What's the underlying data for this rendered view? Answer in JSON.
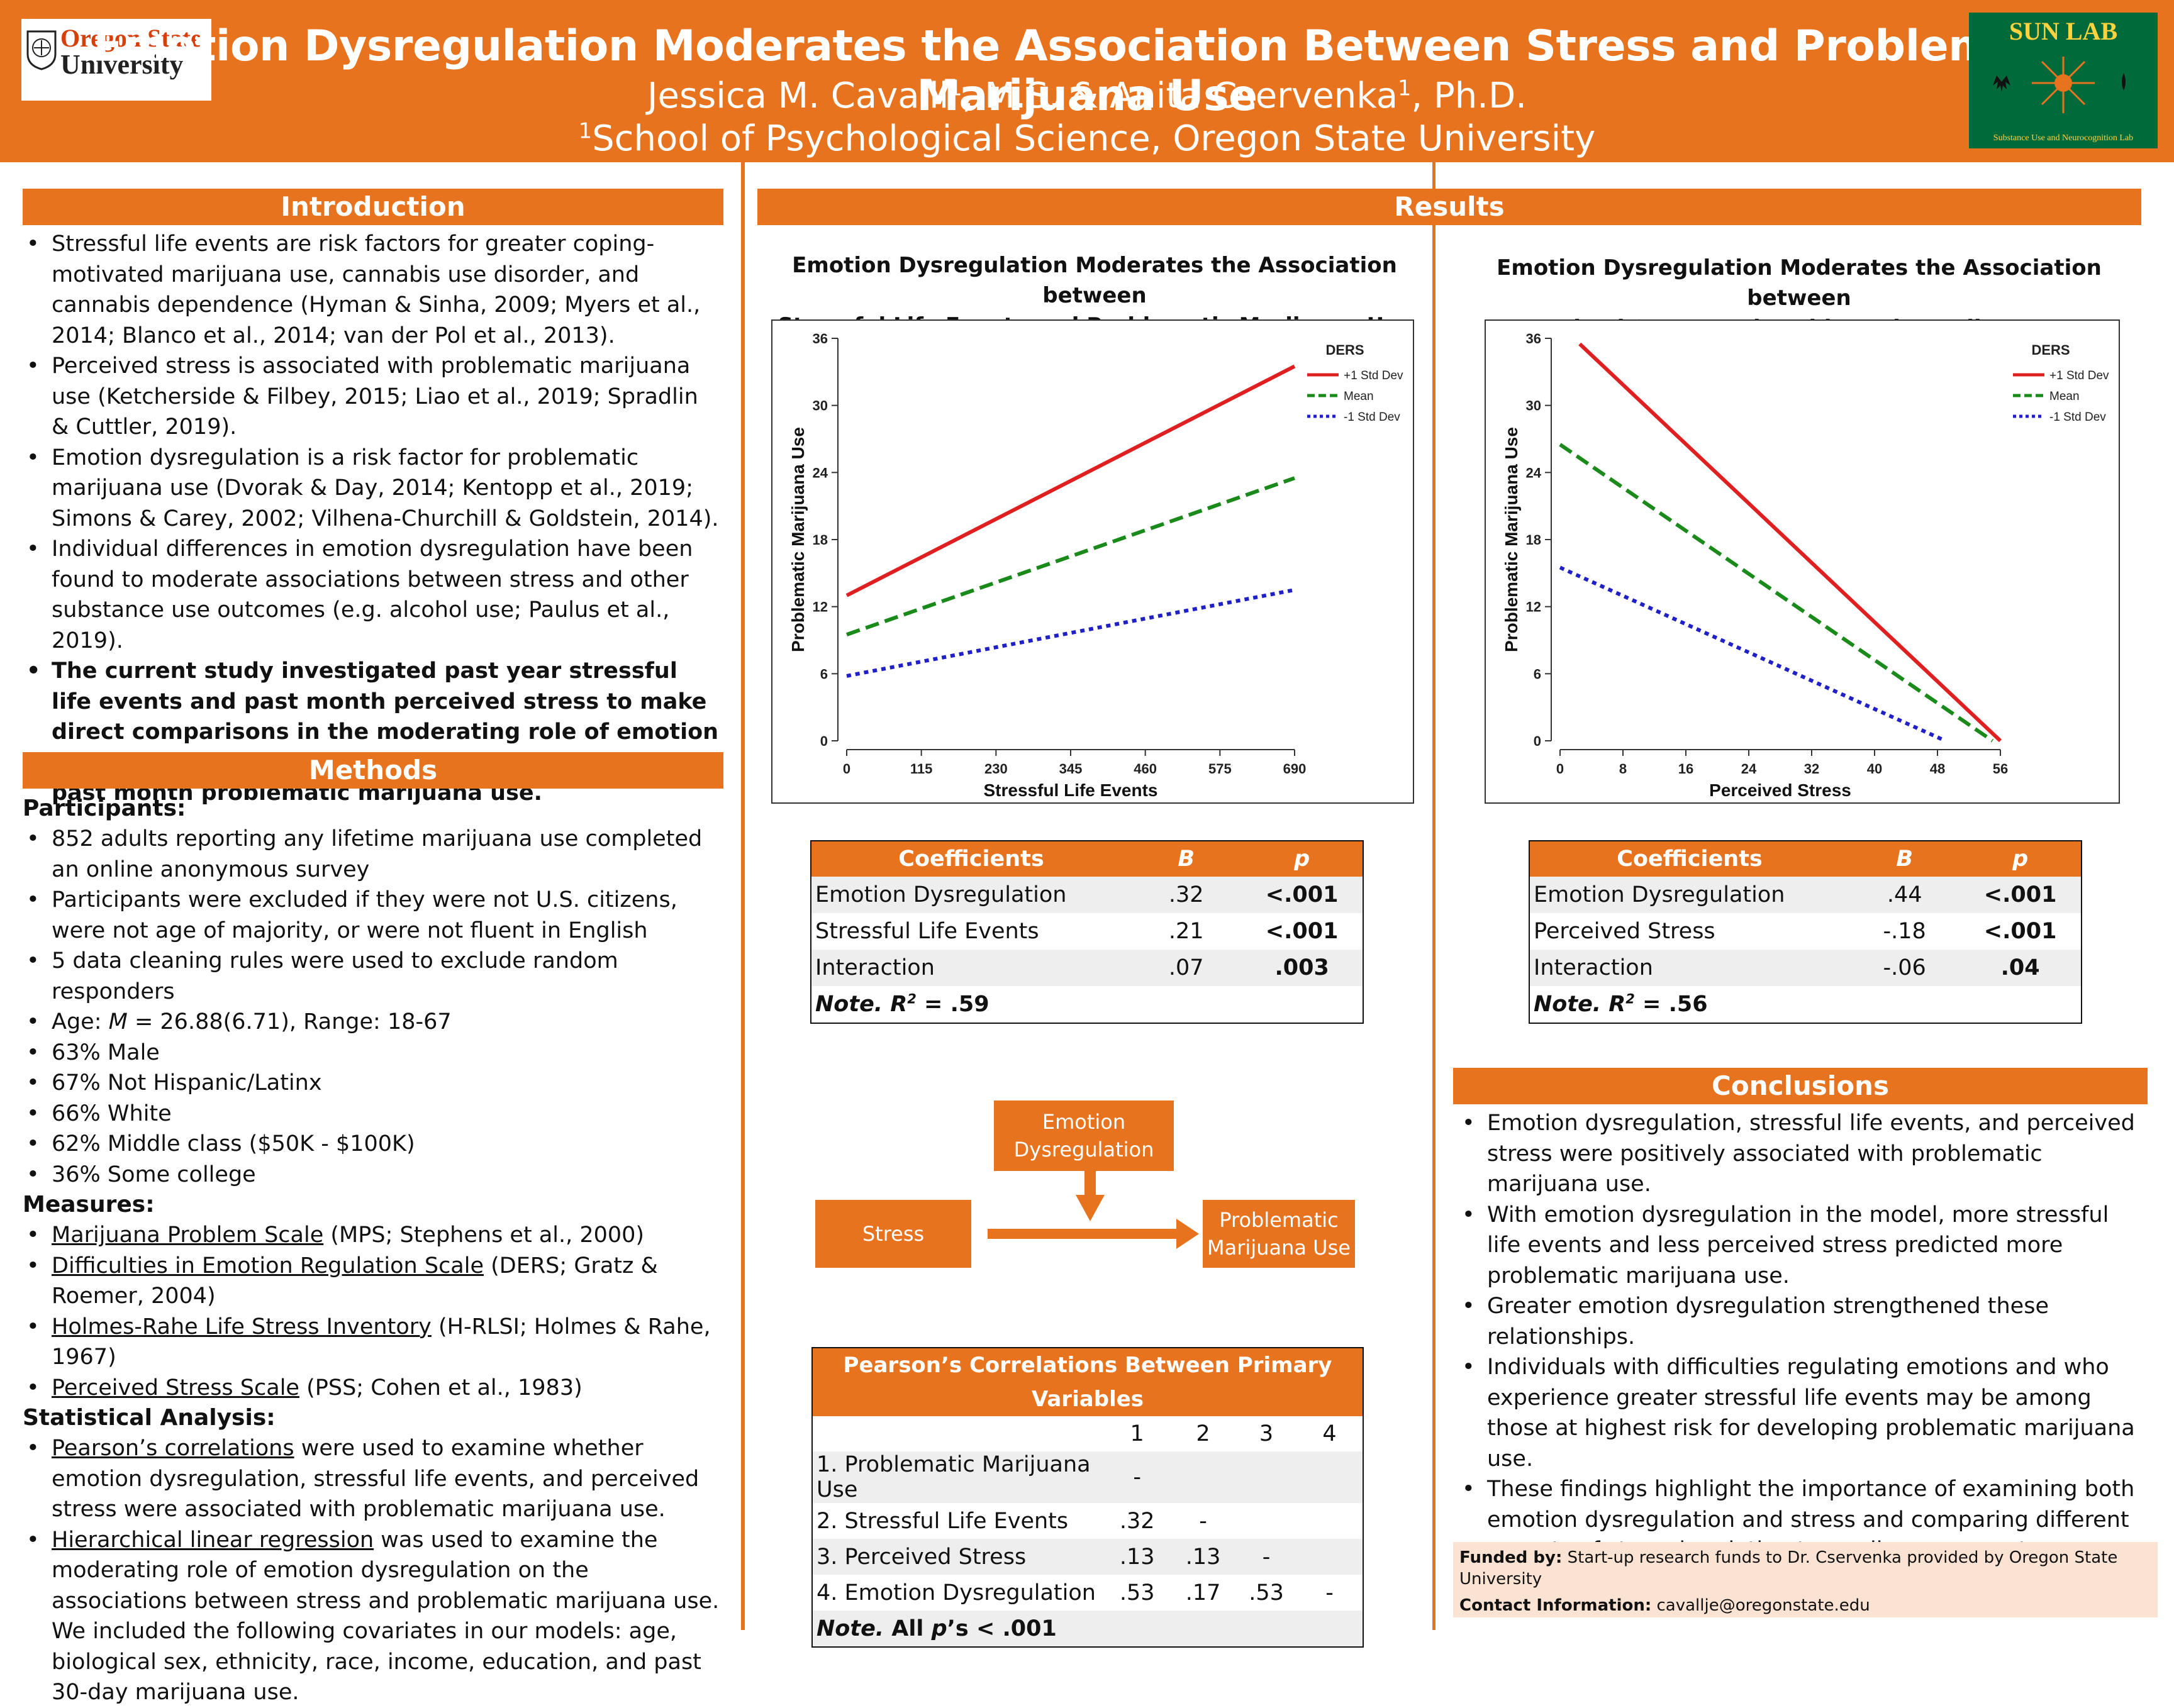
{
  "header": {
    "title": "Emotion Dysregulation Moderates the Association Between Stress and Problematic Marijuana Use",
    "authors": [
      {
        "name": "Jessica M. Cavalli",
        "sup": "1",
        "degree": ", M.S. & "
      },
      {
        "name": "Anita Cservenka",
        "sup": "1",
        "degree": ", Ph.D."
      }
    ],
    "affiliation_sup": "1",
    "affiliation": "School of Psychological Science, Oregon State University",
    "osu_logo": {
      "line1": "Oregon State",
      "line2": "University"
    },
    "sun_lab": {
      "title": "SUN LAB",
      "subtitle": "Substance Use and Neurocognition Lab"
    }
  },
  "introduction": {
    "heading": "Introduction",
    "bullets": [
      "Stressful life events are risk factors for greater coping-motivated marijuana use, cannabis use disorder, and cannabis dependence (Hyman & Sinha, 2009; Myers et al., 2014; Blanco et al., 2014; van der Pol et al., 2013).",
      "Perceived stress is associated with problematic marijuana use (Ketcherside & Filbey, 2015; Liao et al., 2019; Spradlin & Cuttler, 2019).",
      "Emotion dysregulation is a risk factor for problematic marijuana use (Dvorak & Day, 2014; Kentopp et al., 2019; Simons & Carey, 2002; Vilhena-Churchill & Goldstein, 2014).",
      "Individual differences in emotion dysregulation have been found to moderate associations between stress and other substance use outcomes (e.g. alcohol use; Paulus et al., 2019)."
    ],
    "bold_bullet": "The current study investigated past year stressful life events and past month perceived stress to make direct comparisons in the moderating role of emotion dysregulation on the association between stress and past month problematic marijuana use."
  },
  "methods": {
    "heading": "Methods",
    "participants_heading": "Participants:",
    "participants": [
      "852 adults reporting any lifetime marijuana use completed an online anonymous survey",
      "Participants were excluded if they were not U.S. citizens, were not age of majority, or were not fluent in English",
      "5 data cleaning rules were used to exclude random responders"
    ],
    "age_prefix": "Age: ",
    "age_m": "M",
    "age_rest": " = 26.88(6.71), Range: 18-67",
    "demographics": [
      "63% Male",
      "67% Not Hispanic/Latinx",
      "66% White",
      "62% Middle class ($50K - $100K)",
      "36% Some college"
    ],
    "measures_heading": "Measures:",
    "measures": [
      {
        "name": "Marijuana Problem Scale",
        "rest": " (MPS; Stephens et al., 2000)"
      },
      {
        "name": "Difficulties in Emotion Regulation Scale",
        "rest": " (DERS; Gratz & Roemer, 2004)"
      },
      {
        "name": "Holmes-Rahe Life Stress Inventory",
        "rest": " (H-RLSI; Holmes & Rahe, 1967)"
      },
      {
        "name": "Perceived Stress Scale",
        "rest": " (PSS; Cohen et al., 1983)"
      }
    ],
    "stats_heading": "Statistical Analysis:",
    "stats": [
      {
        "name": "Pearson’s correlations",
        "rest": " were used to examine whether emotion dysregulation, stressful life events, and perceived stress were associated with problematic marijuana use."
      },
      {
        "name": "Hierarchical linear regression",
        "rest": " was used to examine the moderating role of emotion dysregulation on the associations between stress and problematic marijuana use. We included the following covariates in our models: age, biological sex, ethnicity, race, income, education, and past 30-day marijuana use."
      }
    ]
  },
  "results": {
    "heading": "Results",
    "chart1_title_l1": "Emotion Dysregulation Moderates the Association between",
    "chart1_title_l2": "Stressful Life Events and Problematic Marijuana Use",
    "chart2_title_l1": "Emotion Dysregulation Moderates the Association between",
    "chart2_title_l2": "Perceived Stress and Problematic Marijuana Use",
    "table1": {
      "headers": [
        "Coefficients",
        "B",
        "p"
      ],
      "rows": [
        [
          "Emotion Dysregulation",
          ".32",
          "<.001"
        ],
        [
          "Stressful Life Events",
          ".21",
          "<.001"
        ],
        [
          "Interaction",
          ".07",
          ".003"
        ]
      ],
      "note_prefix": "Note. R",
      "note_sup": "2",
      "note_value": " = .59"
    },
    "table2": {
      "headers": [
        "Coefficients",
        "B",
        "p"
      ],
      "rows": [
        [
          "Emotion Dysregulation",
          ".44",
          "<.001"
        ],
        [
          "Perceived Stress",
          "-.18",
          "<.001"
        ],
        [
          "Interaction",
          "-.06",
          ".04"
        ]
      ],
      "note_prefix": "Note. R",
      "note_sup": "2",
      "note_value": " = .56"
    },
    "diagram": {
      "moderator_l1": "Emotion",
      "moderator_l2": "Dysregulation",
      "predictor": "Stress",
      "outcome_l1": "Problematic",
      "outcome_l2": "Marijuana Use"
    },
    "correlations": {
      "title": "Pearson’s Correlations Between Primary Variables",
      "col_headers": [
        "1",
        "2",
        "3",
        "4"
      ],
      "rows": [
        {
          "label": "1. Problematic Marijuana Use",
          "vals": [
            "-",
            "",
            "",
            ""
          ]
        },
        {
          "label": "2. Stressful Life Events",
          "vals": [
            ".32",
            "-",
            "",
            ""
          ]
        },
        {
          "label": "3. Perceived Stress",
          "vals": [
            ".13",
            ".13",
            "-",
            ""
          ]
        },
        {
          "label": "4. Emotion Dysregulation",
          "vals": [
            ".53",
            ".17",
            ".53",
            "-"
          ]
        }
      ],
      "note_prefix": "Note.",
      "note_rest_a": " All ",
      "note_p": "p",
      "note_rest_b": "’s < .001"
    }
  },
  "conclusions": {
    "heading": "Conclusions",
    "bullets": [
      "Emotion dysregulation, stressful life events, and perceived stress were positively associated with problematic marijuana use.",
      "With emotion dysregulation in the model, more stressful life events and less perceived stress predicted more problematic marijuana use.",
      "Greater emotion dysregulation strengthened these relationships.",
      "Individuals with difficulties regulating emotions and who experience greater stressful life events may be among those at highest risk for developing problematic marijuana use.",
      "These findings highlight the importance of examining both emotion dysregulation and stress and comparing different aspects of stress in relation to marijuana-use outcomes."
    ]
  },
  "footer": {
    "funded_label": "Funded by:",
    "funded_text": " Start-up research funds to Dr. Cservenka provided by Oregon State University",
    "contact_label": "Contact Information:",
    "contact_text": " cavallje@oregonstate.edu"
  },
  "colors": {
    "accent": "#e8731f",
    "red_line": "#e02020",
    "green_line": "#1a8a1a",
    "blue_line": "#2020c8",
    "sunlab_green": "#006a3b"
  },
  "chart_data": [
    {
      "type": "line",
      "title": "Emotion Dysregulation Moderates the Association between Stressful Life Events and Problematic Marijuana Use",
      "xlabel": "Stressful Life Events",
      "ylabel": "Problematic Marijuana Use",
      "xticks": [
        0,
        115,
        230,
        345,
        460,
        575,
        690
      ],
      "yticks": [
        0,
        6,
        12,
        18,
        24,
        30,
        36
      ],
      "xlim": [
        0,
        690
      ],
      "ylim": [
        0,
        36
      ],
      "legend_title": "DERS",
      "legend_position": "top-right",
      "series": [
        {
          "name": "+1 Std Dev",
          "style": "solid",
          "color": "#e02020",
          "x": [
            0,
            690
          ],
          "y": [
            13,
            33.5
          ]
        },
        {
          "name": "Mean",
          "style": "dashed",
          "color": "#1a8a1a",
          "x": [
            0,
            690
          ],
          "y": [
            9.5,
            23.5
          ]
        },
        {
          "name": "-1 Std Dev",
          "style": "dotted",
          "color": "#2020c8",
          "x": [
            0,
            690
          ],
          "y": [
            5.8,
            13.5
          ]
        }
      ]
    },
    {
      "type": "line",
      "title": "Emotion Dysregulation Moderates the Association between Perceived Stress and Problematic Marijuana Use",
      "xlabel": "Perceived Stress",
      "ylabel": "Problematic Marijuana Use",
      "xticks": [
        0,
        8,
        16,
        24,
        32,
        40,
        48,
        56
      ],
      "yticks": [
        0,
        6,
        12,
        18,
        24,
        30,
        36
      ],
      "xlim": [
        0,
        56
      ],
      "ylim": [
        0,
        36
      ],
      "legend_title": "DERS",
      "legend_position": "top-right",
      "series": [
        {
          "name": "+1 Std Dev",
          "style": "solid",
          "color": "#e02020",
          "x": [
            2.5,
            56
          ],
          "y": [
            35.5,
            0
          ]
        },
        {
          "name": "Mean",
          "style": "dashed",
          "color": "#1a8a1a",
          "x": [
            0,
            55
          ],
          "y": [
            26.5,
            0
          ]
        },
        {
          "name": "-1 Std Dev",
          "style": "dotted",
          "color": "#2020c8",
          "x": [
            0,
            49
          ],
          "y": [
            15.5,
            0
          ]
        }
      ]
    }
  ]
}
